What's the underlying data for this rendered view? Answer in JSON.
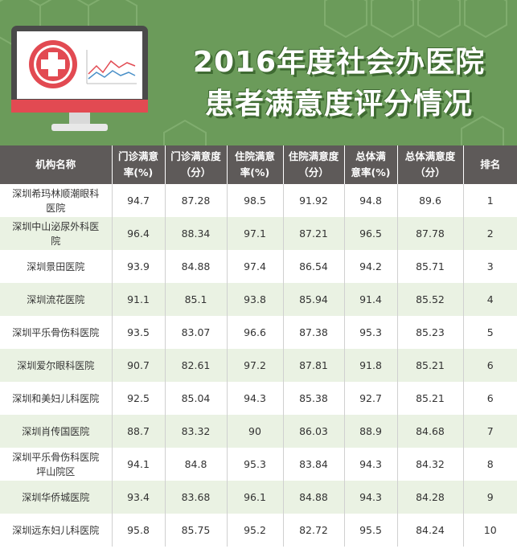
{
  "header": {
    "title_line1": "2016年度社会办医院",
    "title_line2": "患者满意度评分情况"
  },
  "colors": {
    "banner_green": "#6b9b5a",
    "header_gray": "#5e5a59",
    "row_alt": "#eaf2e3",
    "monitor_red": "#e24a52"
  },
  "chart_data": {
    "type": "table",
    "title": "2016年度社会办医院患者满意度评分情况",
    "columns": [
      "机构名称",
      "门诊满意率(%)",
      "门诊满意度（分）",
      "住院满意率(%)",
      "住院满意度（分）",
      "总体满意率(%)",
      "总体满意度（分）",
      "排名"
    ],
    "header_lines": [
      [
        "机构名称"
      ],
      [
        "门诊满意",
        "率(%)"
      ],
      [
        "门诊满意度",
        "（分）"
      ],
      [
        "住院满意",
        "率(%)"
      ],
      [
        "住院满意度",
        "（分）"
      ],
      [
        "总体满",
        "意率(%)"
      ],
      [
        "总体满意度",
        "（分）"
      ],
      [
        "排名"
      ]
    ],
    "rows": [
      {
        "name_lines": [
          "深圳希玛林顺潮眼科",
          "医院"
        ],
        "values": [
          "94.7",
          "87.28",
          "98.5",
          "91.92",
          "94.8",
          "89.6",
          "1"
        ]
      },
      {
        "name_lines": [
          "深圳中山泌尿外科医",
          "院"
        ],
        "values": [
          "96.4",
          "88.34",
          "97.1",
          "87.21",
          "96.5",
          "87.78",
          "2"
        ]
      },
      {
        "name_lines": [
          "深圳景田医院"
        ],
        "values": [
          "93.9",
          "84.88",
          "97.4",
          "86.54",
          "94.2",
          "85.71",
          "3"
        ]
      },
      {
        "name_lines": [
          "深圳流花医院"
        ],
        "values": [
          "91.1",
          "85.1",
          "93.8",
          "85.94",
          "91.4",
          "85.52",
          "4"
        ]
      },
      {
        "name_lines": [
          "深圳平乐骨伤科医院"
        ],
        "values": [
          "93.5",
          "83.07",
          "96.6",
          "87.38",
          "95.3",
          "85.23",
          "5"
        ]
      },
      {
        "name_lines": [
          "深圳爱尔眼科医院"
        ],
        "values": [
          "90.7",
          "82.61",
          "97.2",
          "87.81",
          "91.8",
          "85.21",
          "6"
        ]
      },
      {
        "name_lines": [
          "深圳和美妇儿科医院"
        ],
        "values": [
          "92.5",
          "85.04",
          "94.3",
          "85.38",
          "92.7",
          "85.21",
          "6"
        ]
      },
      {
        "name_lines": [
          "深圳肖传国医院"
        ],
        "values": [
          "88.7",
          "83.32",
          "90",
          "86.03",
          "88.9",
          "84.68",
          "7"
        ]
      },
      {
        "name_lines": [
          "深圳平乐骨伤科医院",
          "坪山院区"
        ],
        "values": [
          "94.1",
          "84.8",
          "95.3",
          "83.84",
          "94.3",
          "84.32",
          "8"
        ]
      },
      {
        "name_lines": [
          "深圳华侨城医院"
        ],
        "values": [
          "93.4",
          "83.68",
          "96.1",
          "84.88",
          "94.3",
          "84.28",
          "9"
        ]
      },
      {
        "name_lines": [
          "深圳远东妇儿科医院"
        ],
        "values": [
          "95.8",
          "85.75",
          "95.2",
          "82.72",
          "95.5",
          "84.24",
          "10"
        ]
      }
    ]
  }
}
